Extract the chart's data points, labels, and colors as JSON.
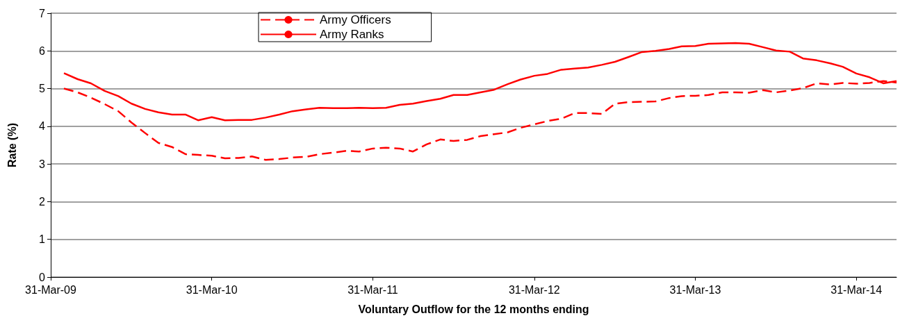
{
  "chart_data": {
    "type": "line",
    "xlabel": "Voluntary Outflow for the 12 months ending",
    "ylabel": "Rate (%)",
    "x": [
      "2009-04-30",
      "2009-05-31",
      "2009-06-30",
      "2009-07-31",
      "2009-08-31",
      "2009-09-30",
      "2009-10-31",
      "2009-11-30",
      "2009-12-31",
      "2010-01-31",
      "2010-02-28",
      "2010-03-31",
      "2010-04-30",
      "2010-05-31",
      "2010-06-30",
      "2010-07-31",
      "2010-08-31",
      "2010-09-30",
      "2010-10-31",
      "2010-11-30",
      "2010-12-31",
      "2011-01-31",
      "2011-02-28",
      "2011-03-31",
      "2011-04-30",
      "2011-05-31",
      "2011-06-30",
      "2011-07-31",
      "2011-08-31",
      "2011-09-30",
      "2011-10-31",
      "2011-11-30",
      "2011-12-31",
      "2012-01-31",
      "2012-02-29",
      "2012-03-31",
      "2012-04-30",
      "2012-05-31",
      "2012-06-30",
      "2012-07-31",
      "2012-08-31",
      "2012-09-30",
      "2012-10-31",
      "2012-11-30",
      "2012-12-31",
      "2013-01-31",
      "2013-02-28",
      "2013-03-31",
      "2013-04-30",
      "2013-05-31",
      "2013-06-30",
      "2013-07-31",
      "2013-08-31",
      "2013-09-30",
      "2013-10-31",
      "2013-11-30",
      "2013-12-31",
      "2014-01-31",
      "2014-02-28",
      "2014-03-31",
      "2014-04-30",
      "2014-05-31",
      "2014-06-30"
    ],
    "series": [
      {
        "name": "Army Officers",
        "color": "#ff0000",
        "line_style": "dashed",
        "values": [
          5.0,
          4.9,
          4.76,
          4.59,
          4.4,
          4.1,
          3.82,
          3.56,
          3.45,
          3.26,
          3.24,
          3.22,
          3.15,
          3.16,
          3.2,
          3.11,
          3.13,
          3.17,
          3.19,
          3.26,
          3.3,
          3.35,
          3.33,
          3.41,
          3.43,
          3.41,
          3.33,
          3.52,
          3.65,
          3.61,
          3.64,
          3.74,
          3.79,
          3.84,
          3.96,
          4.05,
          4.14,
          4.2,
          4.35,
          4.35,
          4.33,
          4.6,
          4.64,
          4.65,
          4.66,
          4.75,
          4.8,
          4.81,
          4.83,
          4.9,
          4.9,
          4.89,
          4.96,
          4.9,
          4.95,
          5.01,
          5.14,
          5.11,
          5.15,
          5.13,
          5.15,
          5.2,
          5.16
        ]
      },
      {
        "name": "Army Ranks",
        "color": "#ff0000",
        "line_style": "solid",
        "values": [
          5.41,
          5.25,
          5.14,
          4.94,
          4.8,
          4.6,
          4.46,
          4.37,
          4.31,
          4.31,
          4.16,
          4.24,
          4.16,
          4.17,
          4.17,
          4.23,
          4.31,
          4.4,
          4.45,
          4.49,
          4.48,
          4.48,
          4.49,
          4.48,
          4.49,
          4.57,
          4.6,
          4.67,
          4.73,
          4.83,
          4.83,
          4.9,
          4.97,
          5.12,
          5.24,
          5.34,
          5.39,
          5.5,
          5.53,
          5.56,
          5.63,
          5.71,
          5.84,
          5.97,
          6.0,
          6.05,
          6.12,
          6.13,
          6.19,
          6.2,
          6.21,
          6.19,
          6.1,
          6.01,
          5.98,
          5.8,
          5.75,
          5.67,
          5.58,
          5.4,
          5.3,
          5.14,
          5.2
        ]
      }
    ],
    "xlim": [
      "2009-03-31",
      "2014-06-30"
    ],
    "xticks": [
      {
        "value": "2009-03-31",
        "label": "31-Mar-09"
      },
      {
        "value": "2010-03-31",
        "label": "31-Mar-10"
      },
      {
        "value": "2011-03-31",
        "label": "31-Mar-11"
      },
      {
        "value": "2012-03-31",
        "label": "31-Mar-12"
      },
      {
        "value": "2013-03-31",
        "label": "31-Mar-13"
      },
      {
        "value": "2014-03-31",
        "label": "31-Mar-14"
      }
    ],
    "ylim": [
      0,
      7
    ],
    "yticks": [
      0,
      1,
      2,
      3,
      4,
      5,
      6,
      7
    ],
    "grid": "y",
    "legend": "top",
    "marker": "none"
  }
}
